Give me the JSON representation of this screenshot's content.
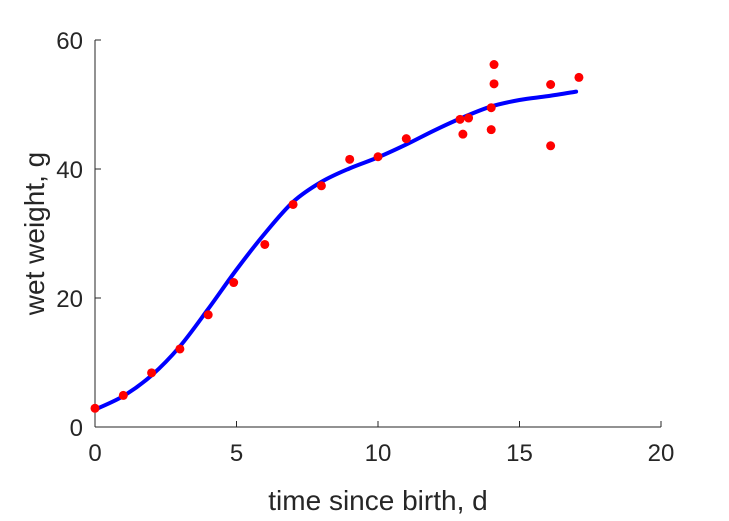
{
  "chart_data": {
    "type": "scatter",
    "title": "",
    "xlabel": "time since birth, d",
    "ylabel": "wet weight, g",
    "xlim": [
      0,
      20
    ],
    "ylim": [
      0,
      60
    ],
    "xticks": [
      "0",
      "5",
      "10",
      "15",
      "20"
    ],
    "yticks": [
      "0",
      "20",
      "40",
      "60"
    ],
    "grid": false,
    "box": false,
    "series": [
      {
        "kind": "points",
        "color": "#ff0000",
        "points": [
          [
            0.0,
            2.9
          ],
          [
            1.0,
            4.9
          ],
          [
            2.0,
            8.4
          ],
          [
            3.0,
            12.1
          ],
          [
            4.0,
            17.4
          ],
          [
            4.9,
            22.4
          ],
          [
            6.0,
            28.3
          ],
          [
            7.0,
            34.5
          ],
          [
            8.0,
            37.4
          ],
          [
            9.0,
            41.5
          ],
          [
            10.0,
            41.9
          ],
          [
            11.0,
            44.7
          ],
          [
            12.9,
            47.7
          ],
          [
            13.0,
            45.4
          ],
          [
            13.2,
            47.9
          ],
          [
            14.0,
            49.5
          ],
          [
            14.0,
            46.1
          ],
          [
            14.1,
            53.2
          ],
          [
            14.1,
            56.2
          ],
          [
            16.1,
            53.1
          ],
          [
            16.1,
            43.6
          ],
          [
            17.1,
            54.2
          ]
        ]
      },
      {
        "kind": "curve",
        "color": "#0000ff",
        "points": [
          [
            0.0,
            2.7
          ],
          [
            1.0,
            4.8
          ],
          [
            2.0,
            8.0
          ],
          [
            3.0,
            12.5
          ],
          [
            4.0,
            18.3
          ],
          [
            5.0,
            24.4
          ],
          [
            6.0,
            30.0
          ],
          [
            7.0,
            34.9
          ],
          [
            8.0,
            38.0
          ],
          [
            9.0,
            40.1
          ],
          [
            10.0,
            41.8
          ],
          [
            11.0,
            43.8
          ],
          [
            12.0,
            46.0
          ],
          [
            13.0,
            48.0
          ],
          [
            14.0,
            49.7
          ],
          [
            15.0,
            50.7
          ],
          [
            16.0,
            51.3
          ],
          [
            17.0,
            52.0
          ]
        ]
      }
    ]
  }
}
